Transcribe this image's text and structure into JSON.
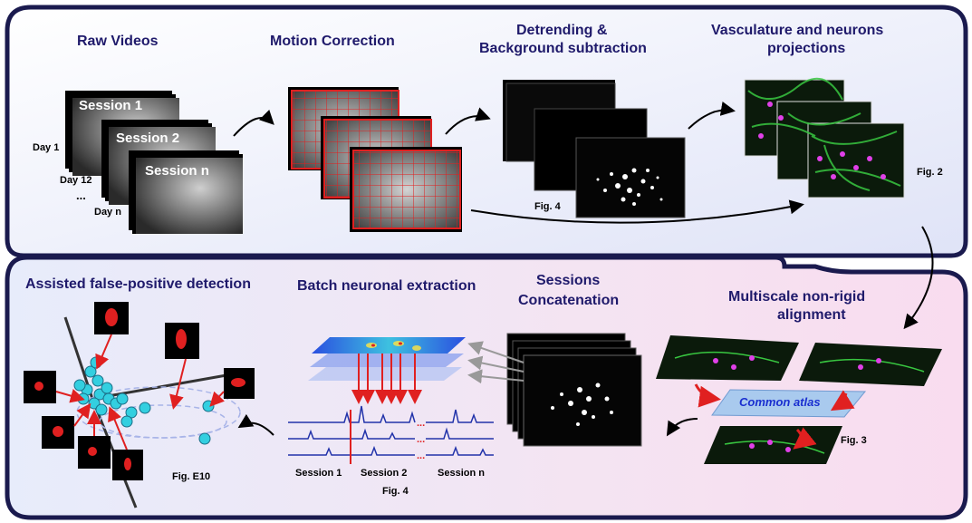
{
  "top_panel": {
    "steps": [
      {
        "title": "Raw Videos"
      },
      {
        "title": "Motion Correction"
      },
      {
        "title_line1": "Detrending &",
        "title_line2": "Background subtraction",
        "fig": "Fig. 4"
      },
      {
        "title_line1": "Vasculature and neurons",
        "title_line2": "projections",
        "fig": "Fig. 2"
      }
    ],
    "sessions": [
      "Session 1",
      "Session 2",
      "Session n"
    ],
    "days": [
      "Day 1",
      "Day 12",
      "...",
      "Day n"
    ]
  },
  "bottom_panel": {
    "alignment": {
      "title_line1": "Multiscale non-rigid",
      "title_line2": "alignment",
      "atlas_label": "Common atlas",
      "fig": "Fig. 3"
    },
    "concatenation": {
      "title_line1": "Sessions",
      "title_line2": "Concatenation"
    },
    "extraction": {
      "title": "Batch neuronal extraction",
      "session_labels": [
        "Session 1",
        "Session 2",
        "Session n"
      ],
      "fig": "Fig. 4"
    },
    "detection": {
      "title": "Assisted false-positive detection",
      "fig": "Fig. E10"
    }
  },
  "colors": {
    "border": "#1a1a4e",
    "title": "#1f1a6b",
    "arrow_red": "#e02020",
    "trace_blue": "#2233aa",
    "cyan": "#33cfe0"
  }
}
